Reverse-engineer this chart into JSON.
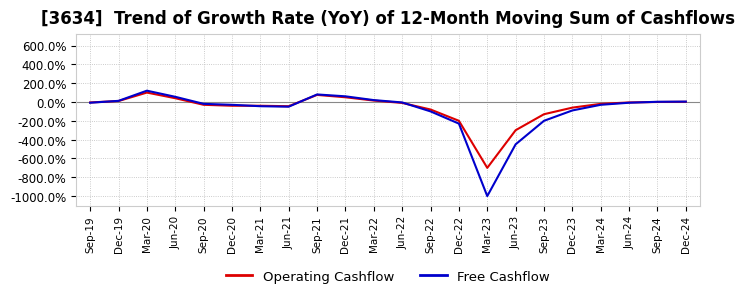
{
  "title": "[3634]  Trend of Growth Rate (YoY) of 12-Month Moving Sum of Cashflows",
  "title_fontsize": 12,
  "background_color": "#ffffff",
  "plot_bg_color": "#ffffff",
  "grid_color": "#bbbbbb",
  "ylim": [
    -1100,
    720
  ],
  "yticks": [
    600,
    400,
    200,
    0,
    -200,
    -400,
    -600,
    -800,
    -1000
  ],
  "ytick_labels": [
    "600.0%",
    "400.0%",
    "200.0%",
    "0.0%",
    "-200.0%",
    "-400.0%",
    "-600.0%",
    "-800.0%",
    "-1000.0%"
  ],
  "x_labels": [
    "Sep-19",
    "Dec-19",
    "Mar-20",
    "Jun-20",
    "Sep-20",
    "Dec-20",
    "Mar-21",
    "Jun-21",
    "Sep-21",
    "Dec-21",
    "Mar-22",
    "Jun-22",
    "Sep-22",
    "Dec-22",
    "Mar-23",
    "Jun-23",
    "Sep-23",
    "Dec-23",
    "Mar-24",
    "Jun-24",
    "Sep-24",
    "Dec-24"
  ],
  "operating_cashflow": [
    -5,
    10,
    100,
    40,
    -30,
    -40,
    -40,
    -45,
    75,
    50,
    15,
    -10,
    -80,
    -200,
    -700,
    -300,
    -130,
    -60,
    -20,
    -5,
    0,
    2
  ],
  "free_cashflow": [
    -8,
    12,
    120,
    55,
    -20,
    -30,
    -45,
    -50,
    80,
    60,
    20,
    -5,
    -100,
    -230,
    -1000,
    -450,
    -200,
    -90,
    -30,
    -8,
    2,
    4
  ],
  "op_color": "#dd0000",
  "free_color": "#0000cc",
  "line_width": 1.5,
  "legend_op": "Operating Cashflow",
  "legend_free": "Free Cashflow"
}
